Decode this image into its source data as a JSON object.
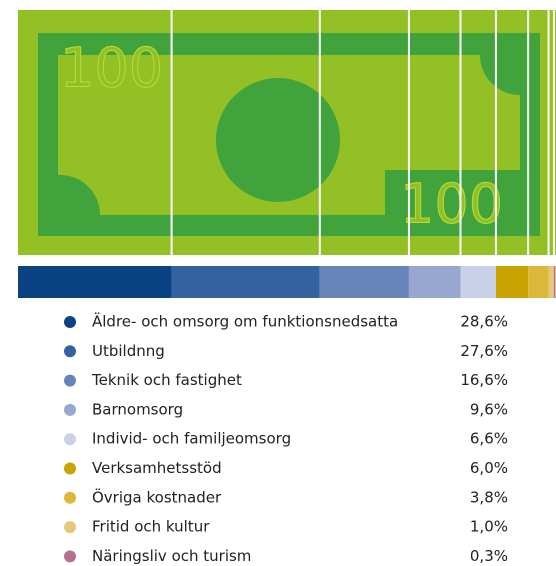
{
  "chart_data": {
    "type": "bar",
    "note_label": "100",
    "categories": [
      "Äldre- och omsorg om funktionsnedsatta",
      "Utbildnng",
      "Teknik och fastighet",
      "Barnomsorg",
      "Individ- och familjeomsorg",
      "Verksamhetsstöd",
      "Övriga kostnader",
      "Fritid och kultur",
      "Näringsliv och turism"
    ],
    "values": [
      28.6,
      27.6,
      16.6,
      9.6,
      6.6,
      6.0,
      3.8,
      1.0,
      0.3
    ],
    "value_labels": [
      "28,6%",
      "27,6%",
      "16,6%",
      "9,6%",
      "6,6%",
      "6,0%",
      "3,8%",
      "1,0%",
      "0,3%"
    ],
    "colors": [
      "#0b4283",
      "#3462a0",
      "#6784b8",
      "#97a7cf",
      "#c9d0e8",
      "#c9a300",
      "#dcb83a",
      "#e5c87a",
      "#b5718f"
    ],
    "xlim": [
      0,
      100
    ]
  }
}
